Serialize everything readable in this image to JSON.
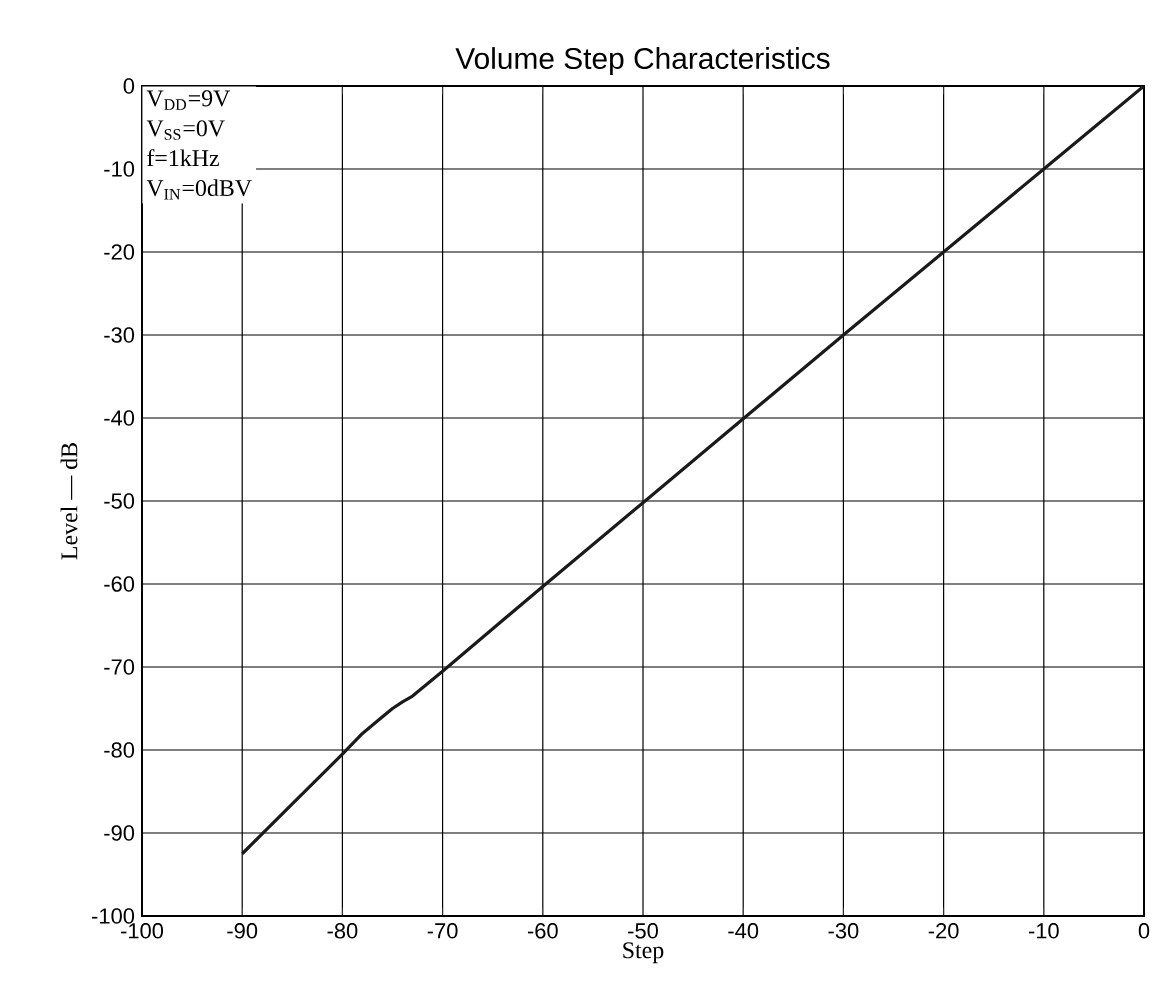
{
  "chart_data": {
    "type": "line",
    "title": "Volume Step Characteristics",
    "xlabel": "Step",
    "ylabel": "Level — dB",
    "annotations": [
      "V$_{DD}$=9V",
      "V$_{SS}$=0V",
      "f=1kHz",
      "V$_{IN}$=0dBV"
    ],
    "x": [
      -90,
      -85,
      -80,
      -78,
      -76,
      -75,
      -74,
      -73,
      -70,
      -60,
      -50,
      -40,
      -30,
      -20,
      -10,
      0
    ],
    "series": [
      {
        "color": "#1a1a1a",
        "values": [
          -92.5,
          -86.5,
          -80.5,
          -78,
          -76,
          -75,
          -74.2,
          -73.5,
          -70.5,
          -60.3,
          -50.2,
          -40.1,
          -30,
          -20,
          -10,
          0
        ]
      }
    ],
    "xlim": [
      -100,
      0
    ],
    "ylim": [
      -100,
      0
    ],
    "xticks": [
      -100,
      -90,
      -80,
      -70,
      -60,
      -50,
      -40,
      -30,
      -20,
      -10,
      0
    ],
    "yticks": [
      -100,
      -90,
      -80,
      -70,
      -60,
      -50,
      -40,
      -30,
      -20,
      -10,
      0
    ],
    "grid": true,
    "marker": "none",
    "line_style": "solid"
  }
}
